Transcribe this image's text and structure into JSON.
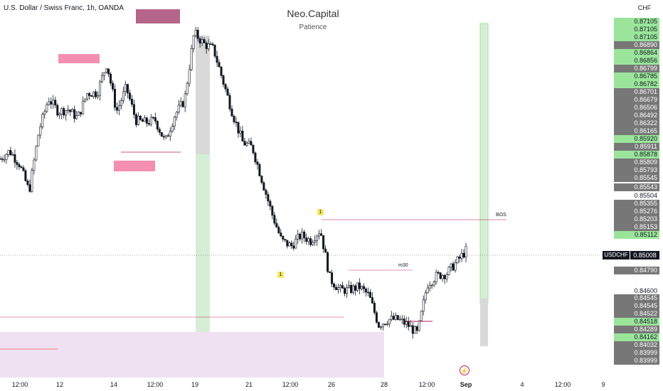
{
  "header": {
    "symbol_title": "U.S. Dollar / Swiss Franc, 1h, OANDA",
    "brand": "Neo.Capital",
    "subtitle": "Patience",
    "currency": "CHF"
  },
  "price_axis": {
    "labels": [
      {
        "text": "0.87105",
        "style": "green"
      },
      {
        "text": "0.87105",
        "style": "green"
      },
      {
        "text": "0.87105",
        "style": "green"
      },
      {
        "text": "0.86890",
        "style": "gray"
      },
      {
        "text": "0.86864",
        "style": "green"
      },
      {
        "text": "0.86856",
        "style": "green"
      },
      {
        "text": "0.86799",
        "style": "gray"
      },
      {
        "text": "0.86785",
        "style": "green"
      },
      {
        "text": "0.86782",
        "style": "green"
      },
      {
        "text": "0.86701",
        "style": "gray"
      },
      {
        "text": "0.86679",
        "style": "gray"
      },
      {
        "text": "0.86506",
        "style": "gray"
      },
      {
        "text": "0.86492",
        "style": "gray"
      },
      {
        "text": "0.86322",
        "style": "gray"
      },
      {
        "text": "0.86165",
        "style": "gray"
      },
      {
        "text": "0.85920",
        "style": "green"
      },
      {
        "text": "0.85911",
        "style": "gray"
      },
      {
        "text": "0.85878",
        "style": "green"
      },
      {
        "text": "0.85809",
        "style": "gray"
      },
      {
        "text": "0.85793",
        "style": "gray"
      },
      {
        "text": "0.85545",
        "style": "gray"
      },
      {
        "text": "0.85543",
        "style": "gray"
      },
      {
        "text": "0.85504",
        "style": "white"
      },
      {
        "text": "0.85355",
        "style": "gray"
      },
      {
        "text": "0.85276",
        "style": "gray"
      },
      {
        "text": "0.85203",
        "style": "gray"
      },
      {
        "text": "0.85153",
        "style": "gray"
      },
      {
        "text": "0.85112",
        "style": "green"
      },
      {
        "text": "0.84790",
        "style": "gray"
      },
      {
        "text": "0.84600",
        "style": "white"
      },
      {
        "text": "0.84545",
        "style": "gray"
      },
      {
        "text": "0.84545",
        "style": "gray"
      },
      {
        "text": "0.84522",
        "style": "gray"
      },
      {
        "text": "0.84518",
        "style": "green"
      },
      {
        "text": "0.84289",
        "style": "gray"
      },
      {
        "text": "0.84162",
        "style": "green"
      },
      {
        "text": "0.84032",
        "style": "gray"
      },
      {
        "text": "0.83999",
        "style": "gray"
      },
      {
        "text": "0.83999",
        "style": "gray"
      }
    ],
    "current_symbol": "USDCHF",
    "current_price": "0.85008"
  },
  "time_axis": [
    {
      "text": "12:00",
      "bold": false
    },
    {
      "text": "12",
      "bold": false
    },
    {
      "text": "14",
      "bold": false
    },
    {
      "text": "12:00",
      "bold": false
    },
    {
      "text": "19",
      "bold": false
    },
    {
      "text": "21",
      "bold": false
    },
    {
      "text": "12:00",
      "bold": false
    },
    {
      "text": "26",
      "bold": false
    },
    {
      "text": "28",
      "bold": false
    },
    {
      "text": "12:00",
      "bold": false
    },
    {
      "text": "Sep",
      "bold": true
    },
    {
      "text": "4",
      "bold": false
    },
    {
      "text": "12:00",
      "bold": false
    },
    {
      "text": "9",
      "bold": false
    }
  ],
  "annotations": {
    "bos": "BOS",
    "m30": "m30",
    "marker1": "1",
    "marker2": "1"
  },
  "icons": {
    "lightning": "lightning-icon"
  },
  "colors": {
    "up_candle": "#ffffff",
    "down_candle": "#131722",
    "zone_pink": "#f06292",
    "zone_purple": "#b39ddb",
    "zone_green": "#a5d6a7",
    "zone_gray": "#bdbdbd",
    "line_pink": "#c2185b",
    "accent_green": "#9be59b"
  },
  "chart_data": {
    "type": "candlestick",
    "instrument": "USDCHF",
    "timeframe": "1h",
    "price_range": [
      0.83999,
      0.87105
    ],
    "current_price": 0.85008,
    "close_path": [
      [
        0,
        0.8585
      ],
      [
        1,
        0.8592
      ],
      [
        2,
        0.858
      ],
      [
        3,
        0.8555
      ],
      [
        4,
        0.861
      ],
      [
        5,
        0.864
      ],
      [
        6,
        0.8628
      ],
      [
        7,
        0.863
      ],
      [
        8,
        0.8622
      ],
      [
        9,
        0.8645
      ],
      [
        10,
        0.8645
      ],
      [
        11,
        0.8672
      ],
      [
        12,
        0.8628
      ],
      [
        13,
        0.865
      ],
      [
        14,
        0.862
      ],
      [
        15,
        0.8618
      ],
      [
        16,
        0.862
      ],
      [
        17,
        0.86
      ],
      [
        18,
        0.8625
      ],
      [
        19,
        0.8638
      ],
      [
        20,
        0.87
      ],
      [
        21,
        0.869
      ],
      [
        22,
        0.8685
      ],
      [
        23,
        0.8655
      ],
      [
        24,
        0.8625
      ],
      [
        25,
        0.86
      ],
      [
        26,
        0.8595
      ],
      [
        27,
        0.8565
      ],
      [
        28,
        0.8535
      ],
      [
        29,
        0.851
      ],
      [
        30,
        0.8505
      ],
      [
        31,
        0.8515
      ],
      [
        32,
        0.851
      ],
      [
        33,
        0.852
      ],
      [
        34,
        0.8475
      ],
      [
        35,
        0.8465
      ],
      [
        36,
        0.8465
      ],
      [
        37,
        0.8468
      ],
      [
        38,
        0.846
      ],
      [
        39,
        0.8433
      ],
      [
        40,
        0.8438
      ],
      [
        41,
        0.8438
      ],
      [
        42,
        0.8433
      ],
      [
        43,
        0.8425
      ],
      [
        44,
        0.847
      ],
      [
        45,
        0.8478
      ],
      [
        46,
        0.848
      ],
      [
        47,
        0.849
      ],
      [
        48,
        0.8501
      ]
    ]
  }
}
